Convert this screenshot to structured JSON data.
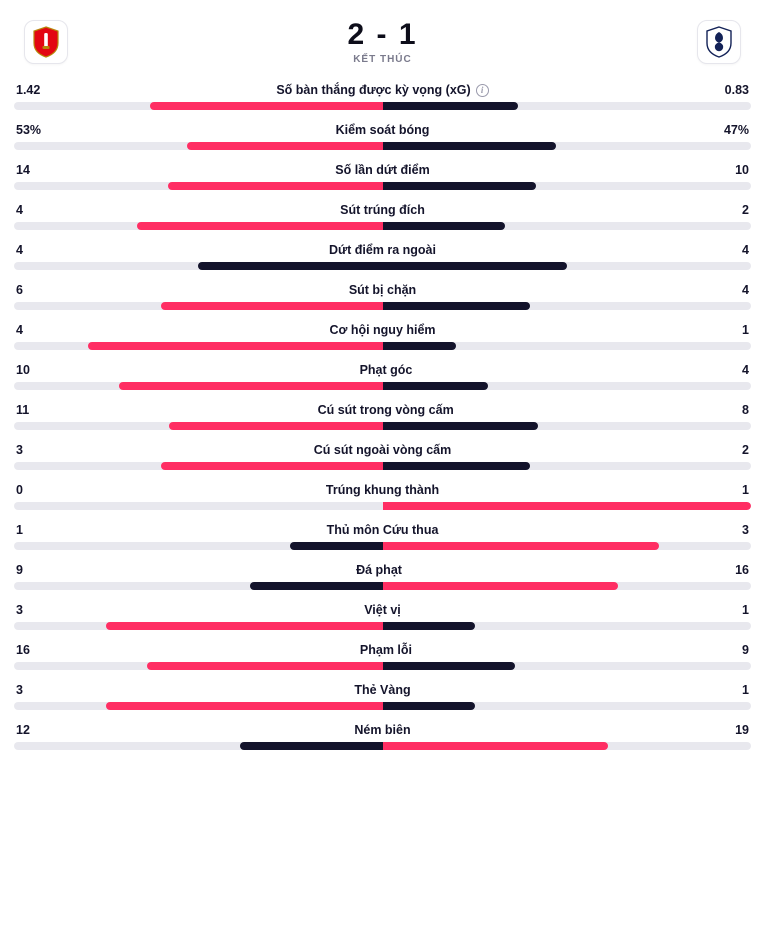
{
  "colors": {
    "home": "#ff2e63",
    "away": "#13132b",
    "track": "#e8e8ee",
    "bg": "#ffffff"
  },
  "header": {
    "home_score": "2",
    "sep": " - ",
    "away_score": "1",
    "status": "KẾT THÚC"
  },
  "bar_scale_percent": 50,
  "stats": [
    {
      "name": "Số bàn thắng được kỳ vọng (xG)",
      "home": "1.42",
      "away": "0.83",
      "home_pct": 63.1,
      "away_pct": 36.9,
      "info": true
    },
    {
      "name": "Kiểm soát bóng",
      "home": "53%",
      "away": "47%",
      "home_pct": 53.0,
      "away_pct": 47.0
    },
    {
      "name": "Số lần dứt điểm",
      "home": "14",
      "away": "10",
      "home_pct": 58.3,
      "away_pct": 41.7
    },
    {
      "name": "Sút trúng đích",
      "home": "4",
      "away": "2",
      "home_pct": 66.7,
      "away_pct": 33.3
    },
    {
      "name": "Dứt điểm ra ngoài",
      "home": "4",
      "away": "4",
      "home_pct": 50.0,
      "away_pct": 50.0,
      "winner": "none"
    },
    {
      "name": "Sút bị chặn",
      "home": "6",
      "away": "4",
      "home_pct": 60.0,
      "away_pct": 40.0
    },
    {
      "name": "Cơ hội nguy hiểm",
      "home": "4",
      "away": "1",
      "home_pct": 80.0,
      "away_pct": 20.0
    },
    {
      "name": "Phạt góc",
      "home": "10",
      "away": "4",
      "home_pct": 71.4,
      "away_pct": 28.6
    },
    {
      "name": "Cú sút trong vòng cấm",
      "home": "11",
      "away": "8",
      "home_pct": 57.9,
      "away_pct": 42.1
    },
    {
      "name": "Cú sút ngoài vòng cấm",
      "home": "3",
      "away": "2",
      "home_pct": 60.0,
      "away_pct": 40.0
    },
    {
      "name": "Trúng khung thành",
      "home": "0",
      "away": "1",
      "home_pct": 0.0,
      "away_pct": 100.0
    },
    {
      "name": "Thủ môn Cứu thua",
      "home": "1",
      "away": "3",
      "home_pct": 25.0,
      "away_pct": 75.0
    },
    {
      "name": "Đá phạt",
      "home": "9",
      "away": "16",
      "home_pct": 36.0,
      "away_pct": 64.0
    },
    {
      "name": "Việt vị",
      "home": "3",
      "away": "1",
      "home_pct": 75.0,
      "away_pct": 25.0
    },
    {
      "name": "Phạm lỗi",
      "home": "16",
      "away": "9",
      "home_pct": 64.0,
      "away_pct": 36.0
    },
    {
      "name": "Thẻ Vàng",
      "home": "3",
      "away": "1",
      "home_pct": 75.0,
      "away_pct": 25.0
    },
    {
      "name": "Ném biên",
      "home": "12",
      "away": "19",
      "home_pct": 38.7,
      "away_pct": 61.3
    }
  ]
}
